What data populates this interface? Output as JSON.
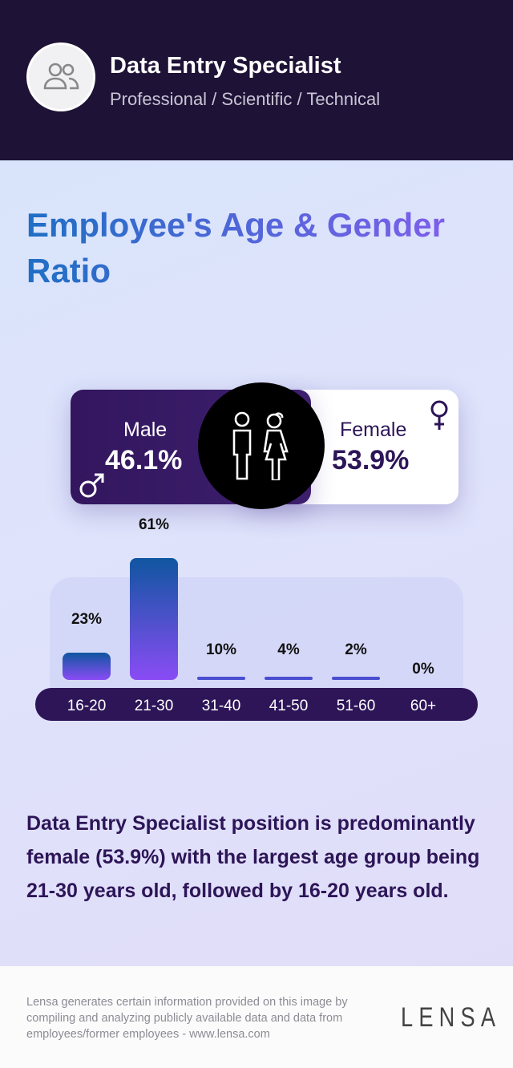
{
  "header": {
    "job_title": "Data Entry Specialist",
    "category": "Professional / Scientific / Technical",
    "avatar_icon": "users-icon"
  },
  "title": "Employee's Age & Gender Ratio",
  "gender": {
    "male_label": "Male",
    "male_value": "46.1%",
    "female_label": "Female",
    "female_value": "53.9%",
    "colors": {
      "male": "#33165e",
      "female": "#ffffff"
    }
  },
  "chart_data": {
    "type": "bar",
    "categories": [
      "16-20",
      "21-30",
      "31-40",
      "41-50",
      "51-60",
      "60+"
    ],
    "values": [
      23,
      61,
      10,
      4,
      2,
      0
    ],
    "value_labels": [
      "23%",
      "61%",
      "10%",
      "4%",
      "2%",
      "0%"
    ],
    "unit": "%",
    "grid": false
  },
  "summary": "Data Entry Specialist position is predominantly female (53.9%) with the largest age group being 21-30 years old, followed by 16-20 years old.",
  "footer": {
    "disclaimer": "Lensa generates certain information provided on this image by compiling and analyzing publicly available data and data from employees/former employees - www.lensa.com",
    "logo": "LENSA"
  }
}
